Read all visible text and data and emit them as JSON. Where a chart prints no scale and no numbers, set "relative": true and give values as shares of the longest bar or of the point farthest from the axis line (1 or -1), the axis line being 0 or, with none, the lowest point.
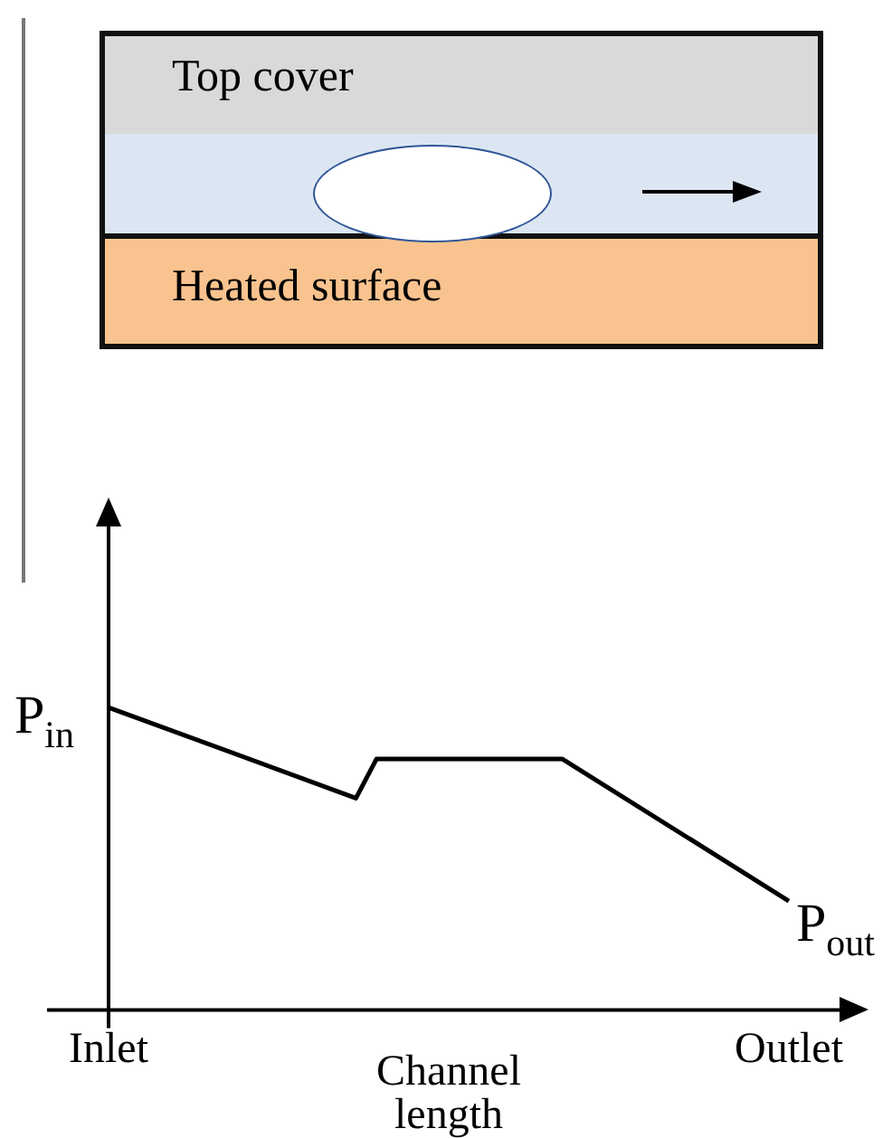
{
  "chart_data": {
    "type": "line",
    "relative": true,
    "xlabel": "Channel length",
    "categories": [
      "Inlet",
      null,
      null,
      null,
      null,
      null,
      null,
      null,
      null,
      null,
      null,
      null,
      null,
      null,
      null,
      null,
      null,
      null,
      null,
      null,
      null,
      null,
      null,
      null,
      null,
      null,
      null,
      null,
      null,
      null,
      null,
      null,
      null,
      "Outlet"
    ],
    "series": [
      {
        "color": "#000000",
        "values": [
          1,
          null,
          null,
          null,
          null,
          null,
          null,
          null,
          null,
          null,
          null,
          null,
          0.7,
          0.83,
          null,
          null,
          null,
          null,
          null,
          null,
          null,
          null,
          0.83,
          null,
          null,
          null,
          null,
          null,
          null,
          null,
          null,
          null,
          null,
          0.36
        ]
      }
    ],
    "annotations": [
      "Top cover",
      "Heated surface",
      {
        "text": "P$_{in}$",
        "x": "Inlet",
        "y": 1
      },
      {
        "text": "P$_{out}$",
        "x": "Outlet",
        "y": 0.36
      }
    ],
    "legend": false,
    "grid": false,
    "marker": "none",
    "line_style": "solid"
  }
}
